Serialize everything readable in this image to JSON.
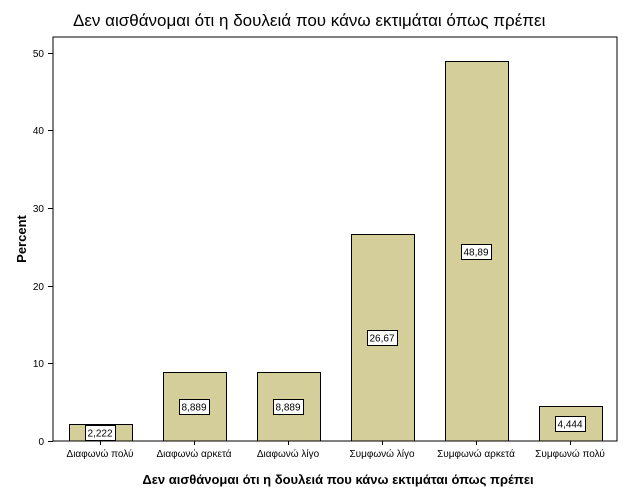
{
  "chart_data": {
    "type": "bar",
    "title": "Δεν αισθάνομαι ότι η δουλειά που κάνω εκτιμάται όπως πρέπει",
    "xlabel": "Δεν αισθάνομαι ότι η δουλειά που κάνω εκτιμάται όπως πρέπει",
    "ylabel": "Percent",
    "categories": [
      "Διαφωνώ πολύ",
      "Διαφωνώ αρκετά",
      "Διαφωνώ λίγο",
      "Συμφωνώ λίγο",
      "Συμφωνώ αρκετά",
      "Συμφωνώ πολύ"
    ],
    "values": [
      2.222,
      8.889,
      8.889,
      26.67,
      48.89,
      4.444
    ],
    "data_labels": [
      "2,222",
      "8,889",
      "8,889",
      "26,67",
      "48,89",
      "4,444"
    ],
    "ylim": [
      0,
      52
    ],
    "yticks": [
      0,
      10,
      20,
      30,
      40,
      50
    ],
    "grid": false,
    "bar_color": "#d3ce9a",
    "plot_background": "#ffffff"
  }
}
